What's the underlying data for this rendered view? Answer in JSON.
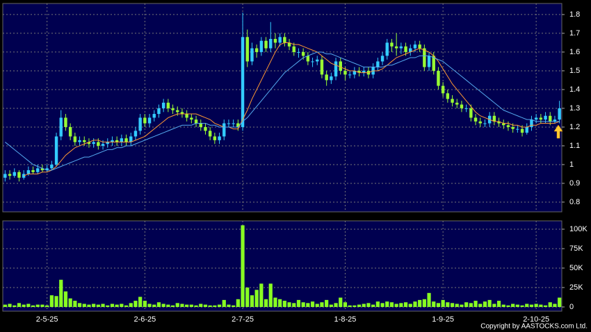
{
  "chart_data": [
    {
      "type": "candlestick",
      "up_color": "#33ccff",
      "down_color": "#99ff33",
      "ylim": [
        0.748,
        1.859
      ],
      "yticks": [
        0.8,
        0.9,
        1,
        1.1,
        1.2,
        1.3,
        1.4,
        1.5,
        1.6,
        1.7,
        1.8
      ],
      "grid": true,
      "open": [
        0.93,
        0.95,
        0.94,
        0.96,
        0.93,
        0.95,
        0.97,
        0.96,
        0.98,
        0.97,
        0.98,
        1.0,
        1.15,
        1.25,
        1.2,
        1.15,
        1.12,
        1.13,
        1.12,
        1.11,
        1.12,
        1.1,
        1.11,
        1.12,
        1.13,
        1.12,
        1.14,
        1.12,
        1.15,
        1.18,
        1.25,
        1.22,
        1.25,
        1.27,
        1.3,
        1.33,
        1.3,
        1.29,
        1.28,
        1.27,
        1.25,
        1.24,
        1.22,
        1.2,
        1.18,
        1.15,
        1.13,
        1.15,
        1.22,
        1.22,
        1.22,
        1.2,
        1.68,
        1.55,
        1.62,
        1.6,
        1.66,
        1.62,
        1.67,
        1.65,
        1.68,
        1.65,
        1.63,
        1.6,
        1.6,
        1.58,
        1.55,
        1.55,
        1.56,
        1.48,
        1.45,
        1.47,
        1.55,
        1.5,
        1.48,
        1.48,
        1.5,
        1.49,
        1.5,
        1.48,
        1.52,
        1.55,
        1.58,
        1.65,
        1.63,
        1.62,
        1.63,
        1.6,
        1.62,
        1.64,
        1.62,
        1.52,
        1.58,
        1.5,
        1.42,
        1.38,
        1.35,
        1.33,
        1.32,
        1.3,
        1.3,
        1.25,
        1.23,
        1.22,
        1.22,
        1.26,
        1.23,
        1.22,
        1.21,
        1.2,
        1.19,
        1.19,
        1.17,
        1.2,
        1.24,
        1.25,
        1.24,
        1.26,
        1.23,
        1.24
      ],
      "high": [
        0.97,
        0.97,
        0.98,
        0.97,
        0.97,
        0.99,
        0.99,
        1.0,
        1.0,
        1.0,
        1.02,
        1.17,
        1.29,
        1.27,
        1.22,
        1.17,
        1.15,
        1.15,
        1.14,
        1.14,
        1.14,
        1.13,
        1.14,
        1.15,
        1.15,
        1.16,
        1.16,
        1.17,
        1.2,
        1.27,
        1.27,
        1.27,
        1.29,
        1.32,
        1.35,
        1.35,
        1.32,
        1.31,
        1.3,
        1.29,
        1.27,
        1.26,
        1.24,
        1.22,
        1.2,
        1.17,
        1.17,
        1.24,
        1.24,
        1.24,
        1.24,
        1.81,
        1.72,
        1.65,
        1.64,
        1.68,
        1.68,
        1.76,
        1.7,
        1.7,
        1.7,
        1.67,
        1.65,
        1.62,
        1.62,
        1.6,
        1.57,
        1.58,
        1.58,
        1.5,
        1.49,
        1.57,
        1.57,
        1.52,
        1.5,
        1.52,
        1.52,
        1.52,
        1.52,
        1.54,
        1.57,
        1.6,
        1.67,
        1.67,
        1.7,
        1.65,
        1.65,
        1.64,
        1.66,
        1.66,
        1.64,
        1.6,
        1.6,
        1.52,
        1.44,
        1.4,
        1.37,
        1.35,
        1.34,
        1.32,
        1.32,
        1.27,
        1.25,
        1.24,
        1.28,
        1.28,
        1.25,
        1.24,
        1.23,
        1.22,
        1.21,
        1.21,
        1.22,
        1.26,
        1.27,
        1.27,
        1.28,
        1.28,
        1.26,
        1.34
      ],
      "low": [
        0.91,
        0.92,
        0.93,
        0.91,
        0.92,
        0.94,
        0.95,
        0.95,
        0.96,
        0.96,
        0.97,
        0.99,
        1.13,
        1.18,
        1.13,
        1.1,
        1.1,
        1.1,
        1.09,
        1.09,
        1.08,
        1.08,
        1.09,
        1.1,
        1.1,
        1.1,
        1.1,
        1.1,
        1.13,
        1.16,
        1.2,
        1.2,
        1.23,
        1.25,
        1.28,
        1.28,
        1.27,
        1.26,
        1.25,
        1.23,
        1.22,
        1.2,
        1.18,
        1.16,
        1.13,
        1.11,
        1.11,
        1.13,
        1.2,
        1.2,
        1.18,
        1.18,
        1.52,
        1.53,
        1.57,
        1.58,
        1.6,
        1.6,
        1.62,
        1.63,
        1.63,
        1.61,
        1.58,
        1.57,
        1.56,
        1.53,
        1.52,
        1.53,
        1.46,
        1.42,
        1.43,
        1.45,
        1.48,
        1.45,
        1.46,
        1.46,
        1.47,
        1.47,
        1.46,
        1.46,
        1.5,
        1.53,
        1.56,
        1.6,
        1.58,
        1.59,
        1.58,
        1.58,
        1.6,
        1.6,
        1.5,
        1.5,
        1.48,
        1.4,
        1.36,
        1.33,
        1.31,
        1.3,
        1.28,
        1.28,
        1.23,
        1.21,
        1.2,
        1.2,
        1.2,
        1.21,
        1.2,
        1.19,
        1.18,
        1.17,
        1.17,
        1.15,
        1.16,
        1.18,
        1.22,
        1.22,
        1.22,
        1.21,
        1.22,
        1.22
      ],
      "close": [
        0.95,
        0.94,
        0.96,
        0.93,
        0.95,
        0.97,
        0.96,
        0.98,
        0.97,
        0.98,
        1.0,
        1.15,
        1.25,
        1.2,
        1.15,
        1.12,
        1.13,
        1.12,
        1.11,
        1.12,
        1.1,
        1.11,
        1.12,
        1.13,
        1.12,
        1.14,
        1.12,
        1.15,
        1.18,
        1.25,
        1.22,
        1.25,
        1.27,
        1.3,
        1.33,
        1.3,
        1.29,
        1.28,
        1.27,
        1.25,
        1.24,
        1.22,
        1.2,
        1.18,
        1.15,
        1.13,
        1.15,
        1.22,
        1.22,
        1.22,
        1.2,
        1.68,
        1.55,
        1.62,
        1.6,
        1.66,
        1.62,
        1.67,
        1.65,
        1.68,
        1.65,
        1.63,
        1.6,
        1.6,
        1.58,
        1.55,
        1.55,
        1.56,
        1.48,
        1.45,
        1.47,
        1.55,
        1.5,
        1.48,
        1.48,
        1.5,
        1.49,
        1.5,
        1.48,
        1.52,
        1.55,
        1.58,
        1.65,
        1.63,
        1.62,
        1.63,
        1.6,
        1.62,
        1.64,
        1.62,
        1.52,
        1.58,
        1.5,
        1.42,
        1.38,
        1.35,
        1.33,
        1.32,
        1.3,
        1.3,
        1.25,
        1.23,
        1.22,
        1.22,
        1.26,
        1.23,
        1.22,
        1.21,
        1.2,
        1.19,
        1.19,
        1.17,
        1.2,
        1.24,
        1.25,
        1.24,
        1.26,
        1.23,
        1.24,
        1.3
      ],
      "lines": [
        {
          "color": "#ff9933",
          "values": [
            null,
            null,
            null,
            null,
            0.94,
            0.95,
            0.95,
            0.95,
            0.96,
            0.96,
            0.97,
            0.99,
            1.02,
            1.05,
            1.07,
            1.09,
            1.1,
            1.11,
            1.12,
            1.13,
            1.13,
            1.12,
            1.12,
            1.12,
            1.12,
            1.12,
            1.12,
            1.12,
            1.13,
            1.14,
            1.15,
            1.17,
            1.19,
            1.21,
            1.23,
            1.25,
            1.26,
            1.27,
            1.27,
            1.27,
            1.27,
            1.27,
            1.26,
            1.25,
            1.24,
            1.22,
            1.21,
            1.2,
            1.2,
            1.19,
            1.19,
            1.24,
            1.29,
            1.35,
            1.4,
            1.45,
            1.5,
            1.55,
            1.6,
            1.64,
            1.65,
            1.65,
            1.64,
            1.64,
            1.63,
            1.62,
            1.61,
            1.6,
            1.58,
            1.56,
            1.54,
            1.53,
            1.52,
            1.51,
            1.5,
            1.5,
            1.49,
            1.49,
            1.49,
            1.5,
            1.5,
            1.51,
            1.53,
            1.55,
            1.57,
            1.58,
            1.59,
            1.6,
            1.61,
            1.62,
            1.61,
            1.6,
            1.58,
            1.55,
            1.51,
            1.47,
            1.43,
            1.4,
            1.37,
            1.34,
            1.31,
            1.28,
            1.26,
            1.25,
            1.24,
            1.23,
            1.23,
            1.22,
            1.22,
            1.21,
            1.21,
            1.2,
            1.2,
            1.21,
            1.21,
            1.22,
            1.22,
            1.22,
            1.22,
            1.23
          ]
        },
        {
          "color": "#55aaee",
          "values": [
            1.12,
            1.1,
            1.08,
            1.06,
            1.04,
            1.02,
            1.0,
            0.99,
            0.98,
            0.97,
            0.97,
            0.98,
            0.99,
            1.0,
            1.01,
            1.02,
            1.03,
            1.04,
            1.04,
            1.05,
            1.06,
            1.07,
            1.08,
            1.08,
            1.09,
            1.09,
            1.1,
            1.1,
            1.11,
            1.12,
            1.13,
            1.14,
            1.15,
            1.16,
            1.17,
            1.18,
            1.19,
            1.2,
            1.21,
            1.21,
            1.21,
            1.22,
            1.22,
            1.22,
            1.21,
            1.21,
            1.2,
            1.2,
            1.2,
            1.2,
            1.2,
            1.23,
            1.25,
            1.28,
            1.31,
            1.34,
            1.37,
            1.4,
            1.43,
            1.46,
            1.49,
            1.51,
            1.53,
            1.55,
            1.57,
            1.58,
            1.59,
            1.6,
            1.6,
            1.59,
            1.59,
            1.58,
            1.57,
            1.56,
            1.55,
            1.54,
            1.53,
            1.52,
            1.52,
            1.52,
            1.52,
            1.52,
            1.53,
            1.53,
            1.54,
            1.55,
            1.56,
            1.57,
            1.57,
            1.58,
            1.58,
            1.58,
            1.57,
            1.56,
            1.55,
            1.53,
            1.51,
            1.49,
            1.47,
            1.45,
            1.43,
            1.41,
            1.39,
            1.37,
            1.35,
            1.33,
            1.31,
            1.29,
            1.28,
            1.27,
            1.26,
            1.25,
            1.24,
            1.24,
            1.23,
            1.23,
            1.23,
            1.23,
            1.23,
            1.23
          ]
        }
      ]
    },
    {
      "type": "bar",
      "color": "#88ff22",
      "ylim": [
        -5400,
        110700
      ],
      "yticks": [
        0,
        {
          "value": 25000,
          "label": "25K"
        },
        {
          "value": 50000,
          "label": "50K"
        },
        {
          "value": 75000,
          "label": "75K"
        },
        {
          "value": 100000,
          "label": "100K"
        }
      ],
      "grid": true,
      "categories": [
        null,
        null,
        null,
        null,
        null,
        null,
        null,
        null,
        null,
        "2-5-25",
        null,
        null,
        null,
        null,
        null,
        null,
        null,
        null,
        null,
        null,
        null,
        null,
        null,
        null,
        null,
        null,
        null,
        null,
        null,
        null,
        "2-6-25",
        null,
        null,
        null,
        null,
        null,
        null,
        null,
        null,
        null,
        null,
        null,
        null,
        null,
        null,
        null,
        null,
        null,
        null,
        null,
        null,
        "2-7-25",
        null,
        null,
        null,
        null,
        null,
        null,
        null,
        null,
        null,
        null,
        null,
        null,
        null,
        null,
        null,
        null,
        null,
        null,
        null,
        null,
        null,
        "1-8-25",
        null,
        null,
        null,
        null,
        null,
        null,
        null,
        null,
        null,
        null,
        null,
        null,
        null,
        null,
        null,
        null,
        null,
        null,
        null,
        null,
        "1-9-25",
        null,
        null,
        null,
        null,
        null,
        null,
        null,
        null,
        null,
        null,
        null,
        null,
        null,
        null,
        null,
        null,
        null,
        null,
        null,
        "2-10-25",
        null,
        null,
        null,
        null,
        null
      ],
      "values": [
        3000,
        4000,
        2000,
        5000,
        3000,
        4000,
        2000,
        3000,
        3000,
        2000,
        15000,
        14000,
        35000,
        20000,
        11000,
        8000,
        5000,
        4000,
        3000,
        4000,
        3000,
        4000,
        2000,
        4000,
        3000,
        4000,
        2000,
        5000,
        8000,
        13000,
        8000,
        4000,
        3000,
        6000,
        4000,
        3000,
        2000,
        5000,
        4000,
        3000,
        3000,
        2000,
        4000,
        3000,
        2000,
        2000,
        3000,
        9000,
        3000,
        2000,
        10000,
        105000,
        25000,
        15000,
        22000,
        30000,
        10000,
        30000,
        12000,
        10000,
        8000,
        6000,
        5000,
        9000,
        6000,
        5000,
        7000,
        4000,
        6000,
        9000,
        3000,
        5000,
        12000,
        6000,
        2000,
        2000,
        3000,
        4000,
        5000,
        3000,
        7000,
        5000,
        7000,
        6000,
        4000,
        5000,
        6000,
        4000,
        7000,
        9000,
        10000,
        18000,
        7000,
        5000,
        9000,
        6000,
        5000,
        4000,
        3000,
        6000,
        5000,
        8000,
        4000,
        7000,
        9000,
        4000,
        8000,
        3000,
        2000,
        4000,
        3000,
        2000,
        4000,
        3000,
        4000,
        3000,
        2000,
        6000,
        4000,
        12000
      ],
      "copyright": "Copyright by AASTOCKS.com Ltd."
    }
  ]
}
